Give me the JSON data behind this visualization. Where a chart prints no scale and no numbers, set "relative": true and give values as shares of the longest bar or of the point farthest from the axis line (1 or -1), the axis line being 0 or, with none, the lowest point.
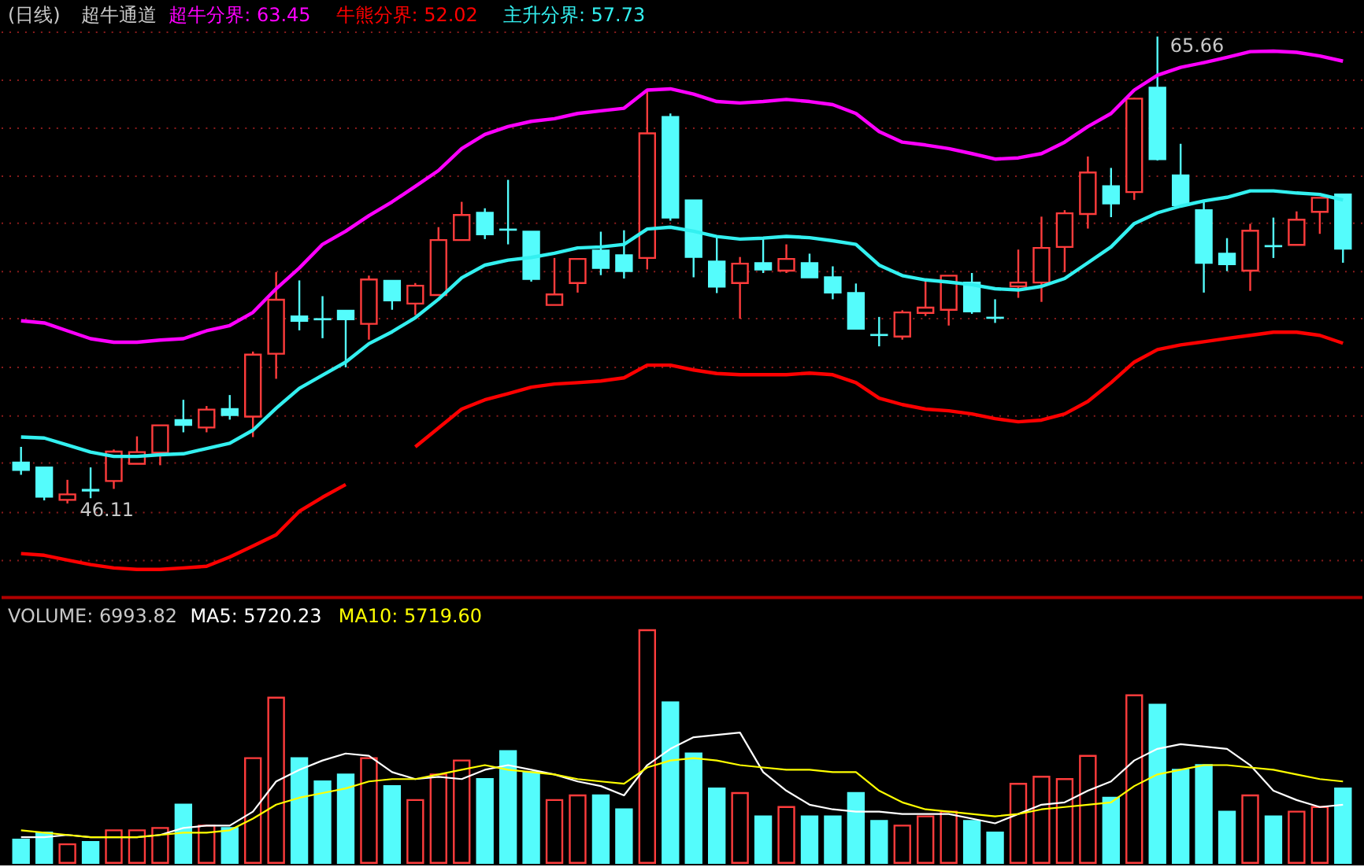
{
  "chart_data": [
    {
      "type": "candlestick",
      "title": "(日线)",
      "subtitle": "超牛通道",
      "legend": "top left",
      "tick_labels": false,
      "grid": "y",
      "categories": [
        null,
        null,
        null,
        null,
        null,
        null,
        null,
        null,
        null,
        null,
        null,
        null,
        null,
        null,
        null,
        null,
        null,
        null,
        null,
        null,
        null,
        null,
        null,
        null,
        null,
        null,
        null,
        null,
        null,
        null,
        null,
        null,
        null,
        null,
        null,
        null,
        null,
        null,
        null,
        null,
        null,
        null,
        null,
        null,
        null,
        null,
        null,
        null,
        null,
        null,
        null,
        null,
        null,
        null,
        null,
        null,
        null,
        null
      ],
      "ylim": [
        42.17,
        67.15
      ],
      "yticks": [
        {
          "value": 43.72,
          "label": null
        },
        {
          "value": 45.73,
          "label": null
        },
        {
          "value": 47.8,
          "label": null
        },
        {
          "value": 49.77,
          "label": null
        },
        {
          "value": 51.81,
          "label": null
        },
        {
          "value": 53.85,
          "label": null
        },
        {
          "value": 55.82,
          "label": null
        },
        {
          "value": 57.84,
          "label": null
        },
        {
          "value": 59.81,
          "label": null
        },
        {
          "value": 61.82,
          "label": null
        },
        {
          "value": 63.83,
          "label": null
        },
        {
          "value": 65.84,
          "label": null
        }
      ],
      "ohlc": [
        [
          47.82,
          48.48,
          47.31,
          47.51
        ],
        [
          47.62,
          47.62,
          46.24,
          46.39
        ],
        [
          46.26,
          47.1,
          46.11,
          46.49
        ],
        [
          46.68,
          47.62,
          46.33,
          46.65
        ],
        [
          47.05,
          48.37,
          46.72,
          48.28
        ],
        [
          47.77,
          48.92,
          47.77,
          48.26
        ],
        [
          48.23,
          49.38,
          47.71,
          49.38
        ],
        [
          49.6,
          50.45,
          49.09,
          49.4
        ],
        [
          49.29,
          50.19,
          49.09,
          50.04
        ],
        [
          50.06,
          50.65,
          49.62,
          49.81
        ],
        [
          49.75,
          52.47,
          48.89,
          52.34
        ],
        [
          52.38,
          55.8,
          51.33,
          54.64
        ],
        [
          53.94,
          55.45,
          53.36,
          53.76
        ],
        [
          53.83,
          54.79,
          53.03,
          53.82
        ],
        [
          54.18,
          54.18,
          51.81,
          53.82
        ],
        [
          53.63,
          55.65,
          52.97,
          55.49
        ],
        [
          55.43,
          55.43,
          54.22,
          54.61
        ],
        [
          54.48,
          55.34,
          54.0,
          55.23
        ],
        [
          54.84,
          57.68,
          54.84,
          57.14
        ],
        [
          57.14,
          58.74,
          57.14,
          58.19
        ],
        [
          58.28,
          58.47,
          57.18,
          57.38
        ],
        [
          57.58,
          59.66,
          56.96,
          57.57
        ],
        [
          57.49,
          57.49,
          55.4,
          55.51
        ],
        [
          54.42,
          56.39,
          54.42,
          54.86
        ],
        [
          55.34,
          56.35,
          54.94,
          56.35
        ],
        [
          56.7,
          57.49,
          55.67,
          55.97
        ],
        [
          56.5,
          57.55,
          55.53,
          55.84
        ],
        [
          56.39,
          63.42,
          55.91,
          61.61
        ],
        [
          62.29,
          62.44,
          57.95,
          58.08
        ],
        [
          58.8,
          58.8,
          55.58,
          56.43
        ],
        [
          56.24,
          57.29,
          54.92,
          55.19
        ],
        [
          55.34,
          56.43,
          53.85,
          56.15
        ],
        [
          56.17,
          57.18,
          55.76,
          55.91
        ],
        [
          55.86,
          56.96,
          55.76,
          56.35
        ],
        [
          56.17,
          56.57,
          55.58,
          55.58
        ],
        [
          55.58,
          56.04,
          54.66,
          54.94
        ],
        [
          54.92,
          55.32,
          53.43,
          53.43
        ],
        [
          53.17,
          53.92,
          52.69,
          53.16
        ],
        [
          53.1,
          54.2,
          52.97,
          54.11
        ],
        [
          54.09,
          55.53,
          53.96,
          54.31
        ],
        [
          54.22,
          55.65,
          53.56,
          55.65
        ],
        [
          55.36,
          55.76,
          54.05,
          54.15
        ],
        [
          53.89,
          54.66,
          53.67,
          53.88
        ],
        [
          55.2,
          56.74,
          54.72,
          55.36
        ],
        [
          55.36,
          58.12,
          54.55,
          56.81
        ],
        [
          56.85,
          58.39,
          55.8,
          58.26
        ],
        [
          58.23,
          60.64,
          57.62,
          59.97
        ],
        [
          59.39,
          60.16,
          58.1,
          58.67
        ],
        [
          59.15,
          63.1,
          58.82,
          63.06
        ],
        [
          63.52,
          65.66,
          60.47,
          60.53
        ],
        [
          59.85,
          61.17,
          58.6,
          58.6
        ],
        [
          58.39,
          58.82,
          54.94,
          56.19
        ],
        [
          56.57,
          57.22,
          55.84,
          56.13
        ],
        [
          55.86,
          57.82,
          55.01,
          57.53
        ],
        [
          56.89,
          58.08,
          56.39,
          56.88
        ],
        [
          56.94,
          58.34,
          56.94,
          57.99
        ],
        [
          58.32,
          58.91,
          57.4,
          58.91
        ],
        [
          59.05,
          59.05,
          56.19,
          56.78
        ]
      ],
      "colors": [
        "#54fcfc",
        "#54fcfc",
        "#ff3c3c",
        "#54fcfc",
        "#ff3c3c",
        "#ff3c3c",
        "#ff3c3c",
        "#54fcfc",
        "#ff3c3c",
        "#54fcfc",
        "#ff3c3c",
        "#ff3c3c",
        "#54fcfc",
        "#54fcfc",
        "#54fcfc",
        "#ff3c3c",
        "#54fcfc",
        "#ff3c3c",
        "#ff3c3c",
        "#ff3c3c",
        "#54fcfc",
        "#54fcfc",
        "#54fcfc",
        "#ff3c3c",
        "#ff3c3c",
        "#54fcfc",
        "#54fcfc",
        "#ff3c3c",
        "#54fcfc",
        "#54fcfc",
        "#54fcfc",
        "#ff3c3c",
        "#54fcfc",
        "#ff3c3c",
        "#54fcfc",
        "#54fcfc",
        "#54fcfc",
        "#54fcfc",
        "#ff3c3c",
        "#ff3c3c",
        "#ff3c3c",
        "#54fcfc",
        "#54fcfc",
        "#ff3c3c",
        "#ff3c3c",
        "#ff3c3c",
        "#ff3c3c",
        "#54fcfc",
        "#ff3c3c",
        "#54fcfc",
        "#54fcfc",
        "#54fcfc",
        "#54fcfc",
        "#ff3c3c",
        "#54fcfc",
        "#ff3c3c",
        "#ff3c3c",
        "#54fcfc"
      ],
      "series": [
        {
          "type": "line",
          "name": "超牛分界: 63.45",
          "color": "#ff00ff",
          "values": [
            53.76,
            53.67,
            53.34,
            53.01,
            52.86,
            52.86,
            52.95,
            53.01,
            53.34,
            53.56,
            54.11,
            55.1,
            55.97,
            56.96,
            57.51,
            58.16,
            58.74,
            59.39,
            60.05,
            60.97,
            61.56,
            61.89,
            62.11,
            62.22,
            62.44,
            62.55,
            62.66,
            63.42,
            63.47,
            63.25,
            62.94,
            62.88,
            62.94,
            63.03,
            62.94,
            62.81,
            62.44,
            61.68,
            61.24,
            61.12,
            60.97,
            60.76,
            60.53,
            60.58,
            60.76,
            61.24,
            61.89,
            62.44,
            63.42,
            64.04,
            64.37,
            64.57,
            64.79,
            65.03,
            65.05,
            65.0,
            64.85,
            64.63
          ]
        },
        {
          "type": "line",
          "name": "牛熊分界: 52.02",
          "color": "#ff0000",
          "values": [
            44.01,
            43.94,
            43.74,
            43.55,
            43.41,
            43.35,
            43.35,
            43.41,
            43.48,
            43.87,
            44.33,
            44.8,
            45.78,
            46.37,
            46.9,
            null,
            null,
            48.48,
            49.27,
            50.06,
            50.45,
            50.71,
            50.98,
            51.11,
            51.17,
            51.24,
            51.37,
            51.9,
            51.9,
            51.7,
            51.55,
            51.5,
            51.5,
            51.5,
            51.57,
            51.5,
            51.17,
            50.52,
            50.25,
            50.06,
            49.99,
            49.86,
            49.66,
            49.53,
            49.6,
            49.86,
            50.38,
            51.17,
            52.03,
            52.55,
            52.75,
            52.88,
            53.02,
            53.15,
            53.28,
            53.28,
            53.15,
            52.82
          ]
        },
        {
          "type": "line",
          "name": "主升分界: 57.73",
          "color": "#33f0f0",
          "values": [
            48.89,
            48.85,
            48.56,
            48.26,
            48.08,
            48.08,
            48.15,
            48.19,
            48.41,
            48.63,
            49.18,
            50.1,
            50.93,
            51.48,
            52.03,
            52.8,
            53.3,
            53.89,
            54.66,
            55.56,
            56.09,
            56.3,
            56.41,
            56.59,
            56.81,
            56.85,
            56.96,
            57.6,
            57.68,
            57.51,
            57.29,
            57.18,
            57.22,
            57.29,
            57.24,
            57.11,
            56.96,
            56.09,
            55.65,
            55.47,
            55.38,
            55.27,
            55.1,
            55.05,
            55.2,
            55.53,
            56.19,
            56.85,
            57.83,
            58.28,
            58.56,
            58.78,
            58.93,
            59.2,
            59.2,
            59.11,
            59.05,
            58.82
          ]
        }
      ],
      "annotations": [
        "65.66",
        "46.11"
      ]
    },
    {
      "type": "bar",
      "relative": true,
      "legend": "top left",
      "tick_labels": false,
      "annotations": [
        "VOLUME: 6993.82"
      ],
      "categories": [
        null,
        null,
        null,
        null,
        null,
        null,
        null,
        null,
        null,
        null,
        null,
        null,
        null,
        null,
        null,
        null,
        null,
        null,
        null,
        null,
        null,
        null,
        null,
        null,
        null,
        null,
        null,
        null,
        null,
        null,
        null,
        null,
        null,
        null,
        null,
        null,
        null,
        null,
        null,
        null,
        null,
        null,
        null,
        null,
        null,
        null,
        null,
        null,
        null,
        null,
        null,
        null,
        null,
        null,
        null,
        null,
        null,
        null
      ],
      "series": [
        {
          "colors": [
            "#54fcfc",
            "#54fcfc",
            "#ff3c3c",
            "#54fcfc",
            "#ff3c3c",
            "#ff3c3c",
            "#ff3c3c",
            "#54fcfc",
            "#ff3c3c",
            "#54fcfc",
            "#ff3c3c",
            "#ff3c3c",
            "#54fcfc",
            "#54fcfc",
            "#54fcfc",
            "#ff3c3c",
            "#54fcfc",
            "#ff3c3c",
            "#ff3c3c",
            "#ff3c3c",
            "#54fcfc",
            "#54fcfc",
            "#54fcfc",
            "#ff3c3c",
            "#ff3c3c",
            "#54fcfc",
            "#54fcfc",
            "#ff3c3c",
            "#54fcfc",
            "#54fcfc",
            "#54fcfc",
            "#ff3c3c",
            "#54fcfc",
            "#ff3c3c",
            "#54fcfc",
            "#54fcfc",
            "#54fcfc",
            "#54fcfc",
            "#ff3c3c",
            "#ff3c3c",
            "#ff3c3c",
            "#54fcfc",
            "#54fcfc",
            "#ff3c3c",
            "#ff3c3c",
            "#ff3c3c",
            "#ff3c3c",
            "#54fcfc",
            "#ff3c3c",
            "#54fcfc",
            "#54fcfc",
            "#54fcfc",
            "#54fcfc",
            "#ff3c3c",
            "#54fcfc",
            "#ff3c3c",
            "#ff3c3c",
            "#54fcfc"
          ],
          "values": [
            0.1,
            0.13,
            0.08,
            0.09,
            0.14,
            0.14,
            0.15,
            0.25,
            0.16,
            0.15,
            0.45,
            0.71,
            0.45,
            0.35,
            0.38,
            0.45,
            0.33,
            0.27,
            0.38,
            0.44,
            0.36,
            0.48,
            0.39,
            0.27,
            0.29,
            0.29,
            0.23,
            1,
            0.69,
            0.47,
            0.32,
            0.3,
            0.2,
            0.24,
            0.2,
            0.2,
            0.3,
            0.18,
            0.16,
            0.2,
            0.22,
            0.18,
            0.13,
            0.34,
            0.37,
            0.36,
            0.46,
            0.28,
            0.72,
            0.68,
            0.4,
            0.42,
            0.22,
            0.29,
            0.2,
            0.22,
            0.24,
            0.32
          ]
        },
        {
          "type": "line",
          "name": "MA5: 5720.23",
          "color": "#ffffff",
          "values": [
            0.11,
            0.11,
            0.12,
            0.11,
            0.11,
            0.11,
            0.12,
            0.15,
            0.16,
            0.16,
            0.22,
            0.35,
            0.4,
            0.44,
            0.47,
            0.46,
            0.39,
            0.36,
            0.37,
            0.36,
            0.4,
            0.42,
            0.4,
            0.38,
            0.35,
            0.33,
            0.29,
            0.42,
            0.49,
            0.54,
            0.55,
            0.56,
            0.39,
            0.31,
            0.25,
            0.23,
            0.22,
            0.22,
            0.21,
            0.21,
            0.21,
            0.19,
            0.17,
            0.21,
            0.25,
            0.26,
            0.31,
            0.35,
            0.44,
            0.49,
            0.51,
            0.5,
            0.49,
            0.42,
            0.31,
            0.27,
            0.24,
            0.25
          ]
        },
        {
          "type": "line",
          "name": "MA10: 5719.60",
          "color": "#ffff00",
          "values": [
            0.14,
            0.13,
            0.12,
            0.11,
            0.11,
            0.11,
            0.12,
            0.13,
            0.13,
            0.14,
            0.19,
            0.25,
            0.28,
            0.3,
            0.32,
            0.35,
            0.36,
            0.36,
            0.38,
            0.4,
            0.42,
            0.4,
            0.39,
            0.38,
            0.36,
            0.35,
            0.34,
            0.41,
            0.44,
            0.45,
            0.44,
            0.42,
            0.41,
            0.4,
            0.4,
            0.39,
            0.39,
            0.31,
            0.26,
            0.23,
            0.22,
            0.21,
            0.2,
            0.21,
            0.23,
            0.24,
            0.25,
            0.26,
            0.33,
            0.38,
            0.4,
            0.42,
            0.42,
            0.41,
            0.4,
            0.38,
            0.36,
            0.35
          ]
        }
      ]
    }
  ]
}
